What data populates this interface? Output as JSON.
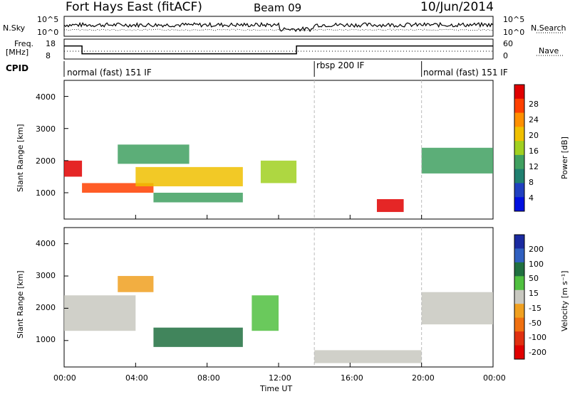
{
  "header": {
    "station": "Fort Hays East (fitACF)",
    "beam": "Beam 09",
    "date": "10/Jun/2014"
  },
  "panel_labels": {
    "nsky": "N.Sky",
    "nsky_ticks": [
      "10^5",
      "10^0"
    ],
    "nsearch": "N.Search",
    "nsearch_ticks": [
      "10^5",
      "10^0"
    ],
    "freq": "Freq.",
    "freq_unit": "[MHz]",
    "freq_ticks": [
      "18",
      "8"
    ],
    "nave": "Nave",
    "nave_ticks": [
      "60",
      "0"
    ],
    "cpid": "CPID"
  },
  "cpid_segments": [
    {
      "label": "normal (fast) 151 IF",
      "start_h": 0
    },
    {
      "label": "rbsp 200 IF",
      "start_h": 14
    },
    {
      "label": "normal (fast) 151 IF",
      "start_h": 20
    }
  ],
  "axes": {
    "ylabel": "Slant Range [km]",
    "xlabel": "Time UT",
    "y_ticks": [
      "1000",
      "2000",
      "3000",
      "4000"
    ],
    "x_ticks": [
      "00:00",
      "04:00",
      "08:00",
      "12:00",
      "16:00",
      "20:00",
      "00:00"
    ]
  },
  "colorbars": {
    "power": {
      "label": "Power [dB]",
      "ticks": [
        "28",
        "24",
        "20",
        "16",
        "12",
        "8",
        "4"
      ],
      "colors": [
        "#e00000",
        "#ff4000",
        "#ff9000",
        "#f0c000",
        "#a0d020",
        "#40a060",
        "#208070",
        "#2040c0",
        "#0010e0"
      ]
    },
    "velocity": {
      "label": "Velocity [m s⁻¹]",
      "ticks": [
        "200",
        "100",
        "50",
        "15",
        "-15",
        "-50",
        "-100",
        "-200"
      ],
      "colors": [
        "#1a2aa0",
        "#3060c0",
        "#207040",
        "#50c040",
        "#c8c8c0",
        "#f0a020",
        "#f07010",
        "#e03010",
        "#e00000"
      ]
    }
  },
  "chart_data": {
    "type": "heatmap",
    "x_range_hours": [
      0,
      24
    ],
    "y_range_km": [
      180,
      4500
    ],
    "frequency_MHz": [
      {
        "start_h": 0,
        "end_h": 1,
        "value": 15
      },
      {
        "start_h": 1,
        "end_h": 13,
        "value": 10
      },
      {
        "start_h": 13,
        "end_h": 24,
        "value": 15
      }
    ],
    "power_regions": [
      {
        "t": [
          0,
          1
        ],
        "r": [
          1500,
          2000
        ],
        "dB": 28
      },
      {
        "t": [
          1,
          5
        ],
        "r": [
          1000,
          1300
        ],
        "dB": 26
      },
      {
        "t": [
          4,
          10
        ],
        "r": [
          1200,
          1800
        ],
        "dB": 18
      },
      {
        "t": [
          3,
          7
        ],
        "r": [
          1900,
          2500
        ],
        "dB": 12
      },
      {
        "t": [
          5,
          10
        ],
        "r": [
          700,
          1000
        ],
        "dB": 14
      },
      {
        "t": [
          11,
          13
        ],
        "r": [
          1300,
          2000
        ],
        "dB": 16
      },
      {
        "t": [
          17.5,
          19
        ],
        "r": [
          400,
          800
        ],
        "dB": 28
      },
      {
        "t": [
          20,
          24
        ],
        "r": [
          1600,
          2400
        ],
        "dB": 14
      }
    ],
    "velocity_regions": [
      {
        "t": [
          0,
          4
        ],
        "r": [
          1300,
          2400
        ],
        "v": 0
      },
      {
        "t": [
          3,
          5
        ],
        "r": [
          2500,
          3000
        ],
        "v": -50
      },
      {
        "t": [
          5,
          10
        ],
        "r": [
          800,
          1400
        ],
        "v": 50
      },
      {
        "t": [
          10.5,
          12
        ],
        "r": [
          1300,
          2400
        ],
        "v": 40
      },
      {
        "t": [
          14,
          20
        ],
        "r": [
          300,
          700
        ],
        "v": 0
      },
      {
        "t": [
          20,
          24
        ],
        "r": [
          1500,
          2500
        ],
        "v": 0
      }
    ]
  }
}
